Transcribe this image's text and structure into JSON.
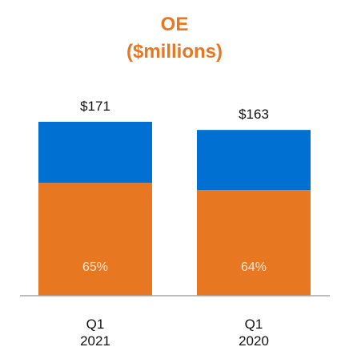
{
  "chart_data": {
    "type": "bar",
    "stacked": true,
    "title": "OE",
    "subtitle": "($millions)",
    "categories": [
      [
        "Q1",
        "2021"
      ],
      [
        "Q1",
        "2020"
      ]
    ],
    "totals": [
      171,
      163
    ],
    "total_labels": [
      "$171",
      "$163"
    ],
    "series": [
      {
        "values": [
          111,
          104
        ],
        "share_labels": [
          "65%",
          "64%"
        ],
        "color": "#e87722"
      },
      {
        "values": [
          60,
          59
        ],
        "color": "#0070d2"
      }
    ],
    "title_color": "#e87722",
    "axis_color": "#a6a6a6"
  }
}
